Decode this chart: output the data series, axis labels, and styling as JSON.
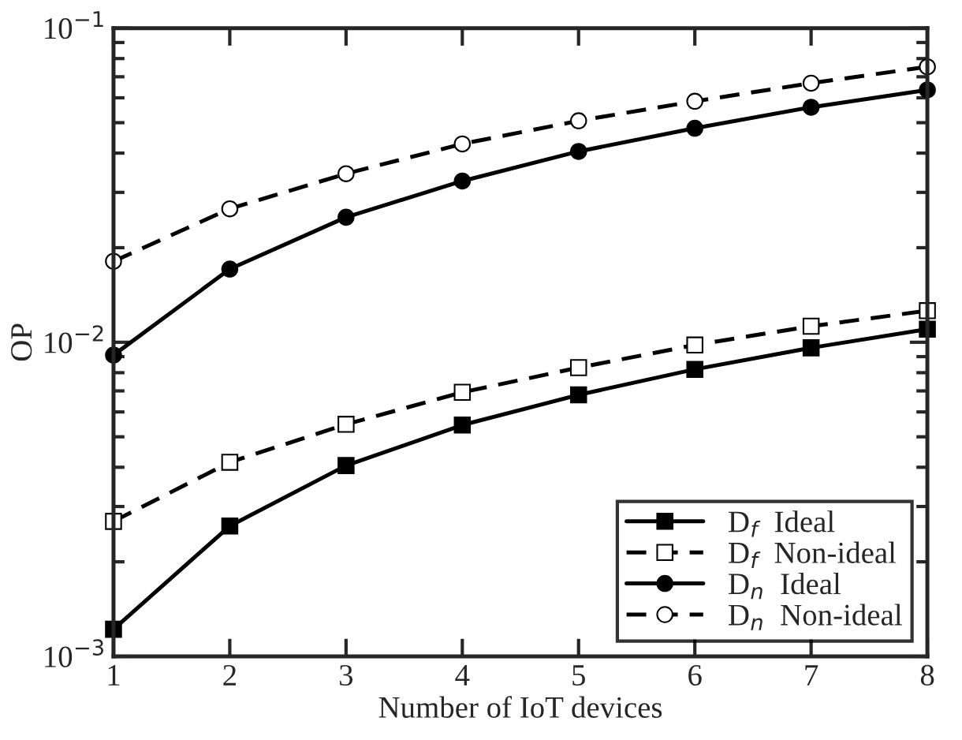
{
  "chart_data": {
    "type": "line",
    "xlabel": "Number of IoT devices",
    "ylabel": "OP",
    "x": [
      1,
      2,
      3,
      4,
      5,
      6,
      7,
      8
    ],
    "series": [
      {
        "name": "D$_{f}$  Ideal",
        "color": "#000000",
        "marker": "square",
        "line_style": "solid",
        "values": [
          0.00122,
          0.0026,
          0.00405,
          0.00545,
          0.0068,
          0.0082,
          0.0096,
          0.011
        ]
      },
      {
        "name": "D$_{f}$  Non-ideal",
        "color": "#000000",
        "marker": "square",
        "line_style": "dashed",
        "values": [
          0.00269,
          0.00415,
          0.00548,
          0.00693,
          0.0083,
          0.0098,
          0.01125,
          0.0126
        ]
      },
      {
        "name": "D$_{n}$  Ideal",
        "color": "#000000",
        "marker": "circle",
        "line_style": "solid",
        "values": [
          0.0091,
          0.0171,
          0.025,
          0.0326,
          0.0405,
          0.048,
          0.056,
          0.0636
        ]
      },
      {
        "name": "D$_{n}$  Non-ideal",
        "color": "#000000",
        "marker": "circle",
        "line_style": "dashed",
        "values": [
          0.0181,
          0.0266,
          0.0344,
          0.0428,
          0.0507,
          0.0585,
          0.0668,
          0.0753
        ]
      }
    ],
    "log": "y",
    "xlim": [
      1,
      8
    ],
    "ylim": [
      0.001,
      0.1
    ],
    "xticks": [
      1,
      2,
      3,
      4,
      5,
      6,
      7,
      8
    ],
    "yticks": [
      {
        "value": 0.001,
        "label": "10$^{−3}$"
      },
      {
        "value": 0.01,
        "label": "10$^{−2}$"
      },
      {
        "value": 0.1,
        "label": "10$^{−1}$"
      }
    ],
    "grid": false,
    "legend": "bottom right"
  }
}
